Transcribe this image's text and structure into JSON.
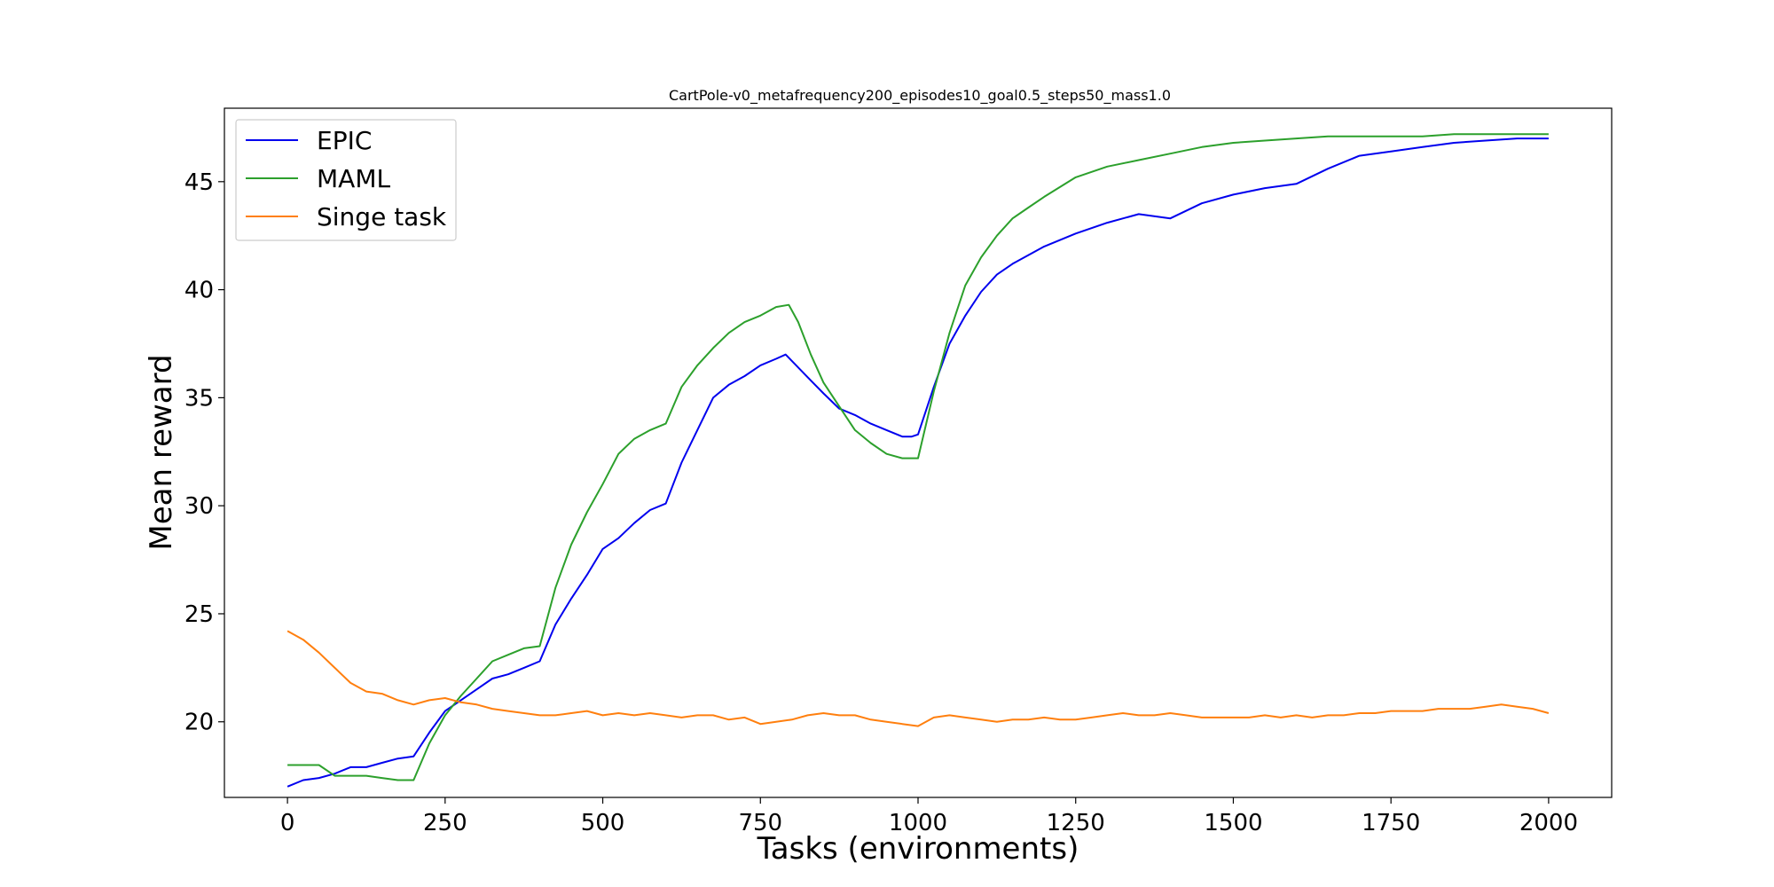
{
  "chart_data": {
    "type": "line",
    "title": "CartPole-v0_metafrequency200_episodes10_goal0.5_steps50_mass1.0",
    "xlabel": "Tasks (environments)",
    "ylabel": "Mean reward",
    "xlim": [
      -100,
      2100
    ],
    "ylim": [
      16.5,
      48.4
    ],
    "xticks": [
      0,
      250,
      500,
      750,
      1000,
      1250,
      1500,
      1750,
      2000
    ],
    "xtick_labels": [
      "0",
      "250",
      "500",
      "750",
      "1000",
      "1250",
      "1500",
      "1750",
      "2000"
    ],
    "yticks": [
      20,
      25,
      30,
      35,
      40,
      45
    ],
    "ytick_labels": [
      "20",
      "25",
      "30",
      "35",
      "40",
      "45"
    ],
    "grid": false,
    "legend_position": "upper-left",
    "series": [
      {
        "name": "EPIC",
        "color": "#0000ee",
        "x": [
          0,
          25,
          50,
          75,
          100,
          125,
          150,
          175,
          200,
          225,
          250,
          275,
          300,
          325,
          350,
          375,
          400,
          425,
          450,
          475,
          500,
          525,
          550,
          575,
          600,
          625,
          650,
          675,
          700,
          725,
          750,
          775,
          790,
          810,
          830,
          850,
          875,
          900,
          925,
          950,
          975,
          990,
          1000,
          1025,
          1050,
          1075,
          1100,
          1125,
          1150,
          1175,
          1200,
          1250,
          1300,
          1350,
          1400,
          1450,
          1500,
          1550,
          1600,
          1650,
          1700,
          1750,
          1800,
          1850,
          1900,
          1950,
          2000
        ],
        "values": [
          17.0,
          17.3,
          17.4,
          17.6,
          17.9,
          17.9,
          18.1,
          18.3,
          18.4,
          19.5,
          20.5,
          21.0,
          21.5,
          22.0,
          22.2,
          22.5,
          22.8,
          24.5,
          25.7,
          26.8,
          28.0,
          28.5,
          29.2,
          29.8,
          30.1,
          32.0,
          33.5,
          35.0,
          35.6,
          36.0,
          36.5,
          36.8,
          37.0,
          36.4,
          35.8,
          35.2,
          34.5,
          34.2,
          33.8,
          33.5,
          33.2,
          33.2,
          33.3,
          35.5,
          37.5,
          38.8,
          39.9,
          40.7,
          41.2,
          41.6,
          42.0,
          42.6,
          43.1,
          43.5,
          43.3,
          44.0,
          44.4,
          44.7,
          44.9,
          45.6,
          46.2,
          46.4,
          46.6,
          46.8,
          46.9,
          47.0,
          47.0
        ]
      },
      {
        "name": "MAML",
        "color": "#2ca02c",
        "x": [
          0,
          25,
          50,
          75,
          100,
          125,
          150,
          175,
          200,
          225,
          250,
          275,
          300,
          325,
          350,
          375,
          400,
          425,
          450,
          475,
          500,
          525,
          550,
          575,
          600,
          625,
          650,
          675,
          700,
          725,
          750,
          775,
          795,
          810,
          830,
          850,
          875,
          900,
          925,
          950,
          975,
          1000,
          1025,
          1050,
          1075,
          1100,
          1125,
          1150,
          1175,
          1200,
          1250,
          1300,
          1350,
          1400,
          1450,
          1500,
          1550,
          1600,
          1650,
          1700,
          1750,
          1800,
          1850,
          1900,
          1950,
          2000
        ],
        "values": [
          18.0,
          18.0,
          18.0,
          17.5,
          17.5,
          17.5,
          17.4,
          17.3,
          17.3,
          19.0,
          20.3,
          21.2,
          22.0,
          22.8,
          23.1,
          23.4,
          23.5,
          26.2,
          28.2,
          29.7,
          31.0,
          32.4,
          33.1,
          33.5,
          33.8,
          35.5,
          36.5,
          37.3,
          38.0,
          38.5,
          38.8,
          39.2,
          39.3,
          38.5,
          37.0,
          35.7,
          34.6,
          33.5,
          32.9,
          32.4,
          32.2,
          32.2,
          35.3,
          38.0,
          40.2,
          41.5,
          42.5,
          43.3,
          43.8,
          44.3,
          45.2,
          45.7,
          46.0,
          46.3,
          46.6,
          46.8,
          46.9,
          47.0,
          47.1,
          47.1,
          47.1,
          47.1,
          47.2,
          47.2,
          47.2,
          47.2
        ]
      },
      {
        "name": "Singe task",
        "color": "#ff7f0e",
        "x": [
          0,
          25,
          50,
          75,
          100,
          125,
          150,
          175,
          200,
          225,
          250,
          275,
          300,
          325,
          350,
          375,
          400,
          425,
          450,
          475,
          500,
          525,
          550,
          575,
          600,
          625,
          650,
          675,
          700,
          725,
          750,
          775,
          800,
          825,
          850,
          875,
          900,
          925,
          950,
          975,
          1000,
          1025,
          1050,
          1075,
          1100,
          1125,
          1150,
          1175,
          1200,
          1225,
          1250,
          1275,
          1300,
          1325,
          1350,
          1375,
          1400,
          1425,
          1450,
          1475,
          1500,
          1525,
          1550,
          1575,
          1600,
          1625,
          1650,
          1675,
          1700,
          1725,
          1750,
          1775,
          1800,
          1825,
          1850,
          1875,
          1900,
          1925,
          1950,
          1975,
          2000
        ],
        "values": [
          24.2,
          23.8,
          23.2,
          22.5,
          21.8,
          21.4,
          21.3,
          21.0,
          20.8,
          21.0,
          21.1,
          20.9,
          20.8,
          20.6,
          20.5,
          20.4,
          20.3,
          20.3,
          20.4,
          20.5,
          20.3,
          20.4,
          20.3,
          20.4,
          20.3,
          20.2,
          20.3,
          20.3,
          20.1,
          20.2,
          19.9,
          20.0,
          20.1,
          20.3,
          20.4,
          20.3,
          20.3,
          20.1,
          20.0,
          19.9,
          19.8,
          20.2,
          20.3,
          20.2,
          20.1,
          20.0,
          20.1,
          20.1,
          20.2,
          20.1,
          20.1,
          20.2,
          20.3,
          20.4,
          20.3,
          20.3,
          20.4,
          20.3,
          20.2,
          20.2,
          20.2,
          20.2,
          20.3,
          20.2,
          20.3,
          20.2,
          20.3,
          20.3,
          20.4,
          20.4,
          20.5,
          20.5,
          20.5,
          20.6,
          20.6,
          20.6,
          20.7,
          20.8,
          20.7,
          20.6,
          20.4
        ]
      }
    ]
  }
}
